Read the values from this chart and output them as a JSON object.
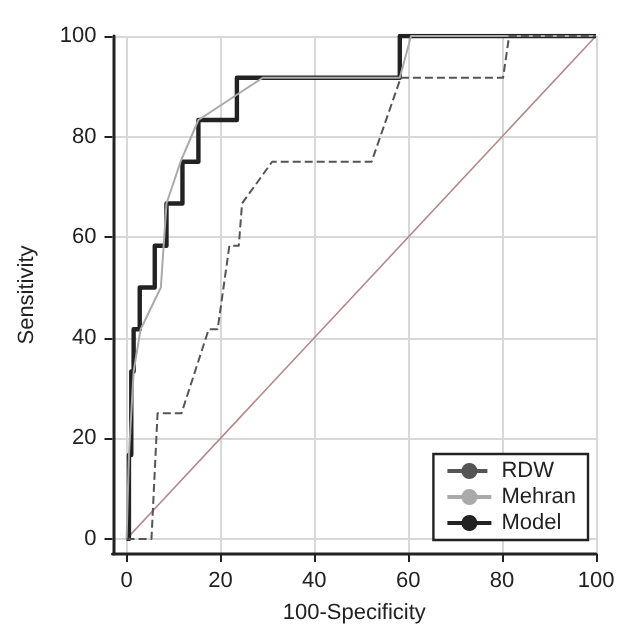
{
  "chart_data": {
    "type": "line",
    "xlabel": "100-Specificity",
    "ylabel": "Sensitivity",
    "xlim": [
      -3,
      100
    ],
    "ylim": [
      -3,
      100
    ],
    "xticks": [
      0,
      20,
      40,
      60,
      80,
      100
    ],
    "yticks": [
      0,
      20,
      40,
      60,
      80,
      100
    ],
    "grid": true,
    "legend": "bottom right",
    "marker": "none",
    "series": [
      {
        "name": "RDW",
        "color": "#555555",
        "line_style": "dashed",
        "x": [
          0,
          5.3,
          6.6,
          11.7,
          17.5,
          19.4,
          21.9,
          23.9,
          24.6,
          31,
          52.2,
          58.4,
          80.2,
          81.5,
          100
        ],
        "values": [
          0,
          0,
          25,
          25,
          41.7,
          41.7,
          58.3,
          58.3,
          66.7,
          75,
          75,
          91.7,
          91.7,
          100,
          100
        ]
      },
      {
        "name": "Mehran",
        "color": "#aaaaaa",
        "line_style": "solid",
        "x": [
          0,
          0.5,
          1.5,
          3,
          7.3,
          8.5,
          11.5,
          15.3,
          29,
          58.2,
          60.6,
          100
        ],
        "values": [
          0,
          16.7,
          33.3,
          41.7,
          50,
          66.7,
          75,
          83.3,
          91.7,
          91.7,
          100,
          100
        ]
      },
      {
        "name": "Model",
        "color": "#222222",
        "line_style": "solid",
        "x": [
          0,
          0.5,
          0.5,
          1,
          1,
          1.5,
          1.5,
          2.8,
          2.8,
          6,
          6,
          8.5,
          8.5,
          11.9,
          11.9,
          15.3,
          15.3,
          23.5,
          23.5,
          58.2,
          58.2,
          100
        ],
        "values": [
          0,
          0,
          16.7,
          16.7,
          33.3,
          33.3,
          41.7,
          41.7,
          50,
          50,
          58.3,
          58.3,
          66.7,
          66.7,
          75,
          75,
          83.3,
          83.3,
          91.7,
          91.7,
          100,
          100
        ]
      },
      {
        "color": "#b08a8a",
        "line_style": "solid",
        "x": [
          0,
          100
        ],
        "values": [
          0,
          100
        ]
      }
    ]
  }
}
